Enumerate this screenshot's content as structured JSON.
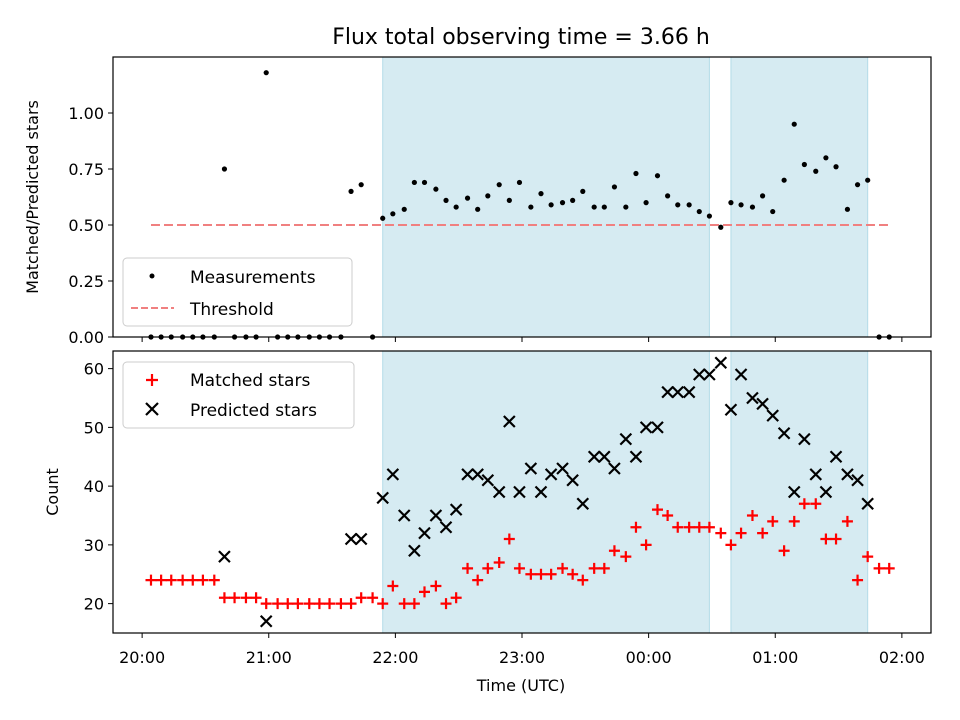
{
  "figure": {
    "title": "Flux total observing time = 3.66 h"
  },
  "chart_data": [
    {
      "type": "scatter",
      "ylabel": "Matched/Predicted stars",
      "ylim": [
        0,
        1.25
      ],
      "y_ticks": [
        0.0,
        0.25,
        0.5,
        0.75,
        1.0
      ],
      "y_tick_labels": [
        "0.00",
        "0.25",
        "0.50",
        "0.75",
        "1.00"
      ],
      "xlim": [
        -0.23,
        6.23
      ],
      "legend": {
        "placement": "lower-left",
        "entries": [
          "Measurements",
          "Threshold"
        ]
      },
      "threshold": {
        "name": "Threshold",
        "value": 0.5,
        "x_range": [
          0.07,
          5.9
        ],
        "color": "#f08080"
      },
      "shaded_intervals": [
        [
          1.9,
          4.48
        ],
        [
          4.65,
          5.73
        ]
      ],
      "series": [
        {
          "name": "Measurements",
          "color": "#000000",
          "x": [
            0.07,
            0.15,
            0.23,
            0.32,
            0.4,
            0.48,
            0.57,
            0.65,
            0.73,
            0.82,
            0.9,
            0.98,
            1.07,
            1.15,
            1.23,
            1.32,
            1.4,
            1.48,
            1.57,
            1.65,
            1.73,
            1.82,
            1.9,
            1.98,
            2.07,
            2.15,
            2.23,
            2.32,
            2.4,
            2.48,
            2.57,
            2.65,
            2.73,
            2.82,
            2.9,
            2.98,
            3.07,
            3.15,
            3.23,
            3.32,
            3.4,
            3.48,
            3.57,
            3.65,
            3.73,
            3.82,
            3.9,
            3.98,
            4.07,
            4.15,
            4.23,
            4.32,
            4.4,
            4.48,
            4.57,
            4.65,
            4.73,
            4.82,
            4.9,
            4.98,
            5.07,
            5.15,
            5.23,
            5.32,
            5.4,
            5.48,
            5.57,
            5.65,
            5.73,
            5.82,
            5.9
          ],
          "y": [
            0,
            0,
            0,
            0,
            0,
            0,
            0,
            0.75,
            0,
            0,
            0,
            1.18,
            0,
            0,
            0,
            0,
            0,
            0,
            0,
            0.65,
            0.68,
            0,
            0.53,
            0.55,
            0.57,
            0.69,
            0.69,
            0.66,
            0.61,
            0.58,
            0.62,
            0.57,
            0.63,
            0.68,
            0.61,
            0.69,
            0.58,
            0.64,
            0.59,
            0.6,
            0.61,
            0.65,
            0.58,
            0.58,
            0.67,
            0.58,
            0.73,
            0.6,
            0.72,
            0.63,
            0.59,
            0.59,
            0.56,
            0.54,
            0.49,
            0.6,
            0.59,
            0.58,
            0.63,
            0.56,
            0.7,
            0.95,
            0.77,
            0.74,
            0.8,
            0.76,
            0.57,
            0.68,
            0.7,
            0,
            0
          ]
        }
      ]
    },
    {
      "type": "scatter",
      "xlabel": "Time (UTC)",
      "ylabel": "Count",
      "ylim": [
        15,
        63
      ],
      "y_ticks": [
        20,
        30,
        40,
        50,
        60
      ],
      "y_tick_labels": [
        "20",
        "30",
        "40",
        "50",
        "60"
      ],
      "xlim": [
        -0.23,
        6.23
      ],
      "x_ticks": [
        0,
        1,
        2,
        3,
        4,
        5,
        6
      ],
      "x_tick_labels": [
        "20:00",
        "21:00",
        "22:00",
        "23:00",
        "00:00",
        "01:00",
        "02:00"
      ],
      "legend": {
        "placement": "upper-left",
        "entries": [
          "Matched stars",
          "Predicted stars"
        ]
      },
      "shaded_intervals": [
        [
          1.9,
          4.48
        ],
        [
          4.65,
          5.73
        ]
      ],
      "series": [
        {
          "name": "Matched stars",
          "color": "#ff0000",
          "marker": "plus",
          "x": [
            0.07,
            0.15,
            0.23,
            0.32,
            0.4,
            0.48,
            0.57,
            0.65,
            0.73,
            0.82,
            0.9,
            0.98,
            1.07,
            1.15,
            1.23,
            1.32,
            1.4,
            1.48,
            1.57,
            1.65,
            1.73,
            1.82,
            1.9,
            1.98,
            2.07,
            2.15,
            2.23,
            2.32,
            2.4,
            2.48,
            2.57,
            2.65,
            2.73,
            2.82,
            2.9,
            2.98,
            3.07,
            3.15,
            3.23,
            3.32,
            3.4,
            3.48,
            3.57,
            3.65,
            3.73,
            3.82,
            3.9,
            3.98,
            4.07,
            4.15,
            4.23,
            4.32,
            4.4,
            4.48,
            4.57,
            4.65,
            4.73,
            4.82,
            4.9,
            4.98,
            5.07,
            5.15,
            5.23,
            5.32,
            5.4,
            5.48,
            5.57,
            5.65,
            5.73,
            5.82,
            5.9
          ],
          "y": [
            24,
            24,
            24,
            24,
            24,
            24,
            24,
            21,
            21,
            21,
            21,
            20,
            20,
            20,
            20,
            20,
            20,
            20,
            20,
            20,
            21,
            21,
            20,
            23,
            20,
            20,
            22,
            23,
            20,
            21,
            26,
            24,
            26,
            27,
            31,
            26,
            25,
            25,
            25,
            26,
            25,
            24,
            26,
            26,
            29,
            28,
            33,
            30,
            36,
            35,
            33,
            33,
            33,
            33,
            32,
            30,
            32,
            35,
            32,
            34,
            29,
            34,
            37,
            37,
            31,
            31,
            34,
            24,
            28,
            26,
            26
          ]
        },
        {
          "name": "Predicted stars",
          "color": "#000000",
          "marker": "x",
          "x": [
            0.65,
            0.98,
            1.65,
            1.73,
            1.9,
            1.98,
            2.07,
            2.15,
            2.23,
            2.32,
            2.4,
            2.48,
            2.57,
            2.65,
            2.73,
            2.82,
            2.9,
            2.98,
            3.07,
            3.15,
            3.23,
            3.32,
            3.4,
            3.48,
            3.57,
            3.65,
            3.73,
            3.82,
            3.9,
            3.98,
            4.07,
            4.15,
            4.23,
            4.32,
            4.4,
            4.48,
            4.57,
            4.65,
            4.73,
            4.82,
            4.9,
            4.98,
            5.07,
            5.15,
            5.23,
            5.32,
            5.4,
            5.48,
            5.57,
            5.65,
            5.73
          ],
          "y": [
            28,
            17,
            31,
            31,
            38,
            42,
            35,
            29,
            32,
            35,
            33,
            36,
            42,
            42,
            41,
            39,
            51,
            39,
            43,
            39,
            42,
            43,
            41,
            37,
            45,
            45,
            43,
            48,
            45,
            50,
            50,
            56,
            56,
            56,
            59,
            59,
            61,
            53,
            59,
            55,
            54,
            52,
            49,
            39,
            48,
            42,
            39,
            45,
            42,
            41,
            37
          ]
        }
      ]
    }
  ]
}
